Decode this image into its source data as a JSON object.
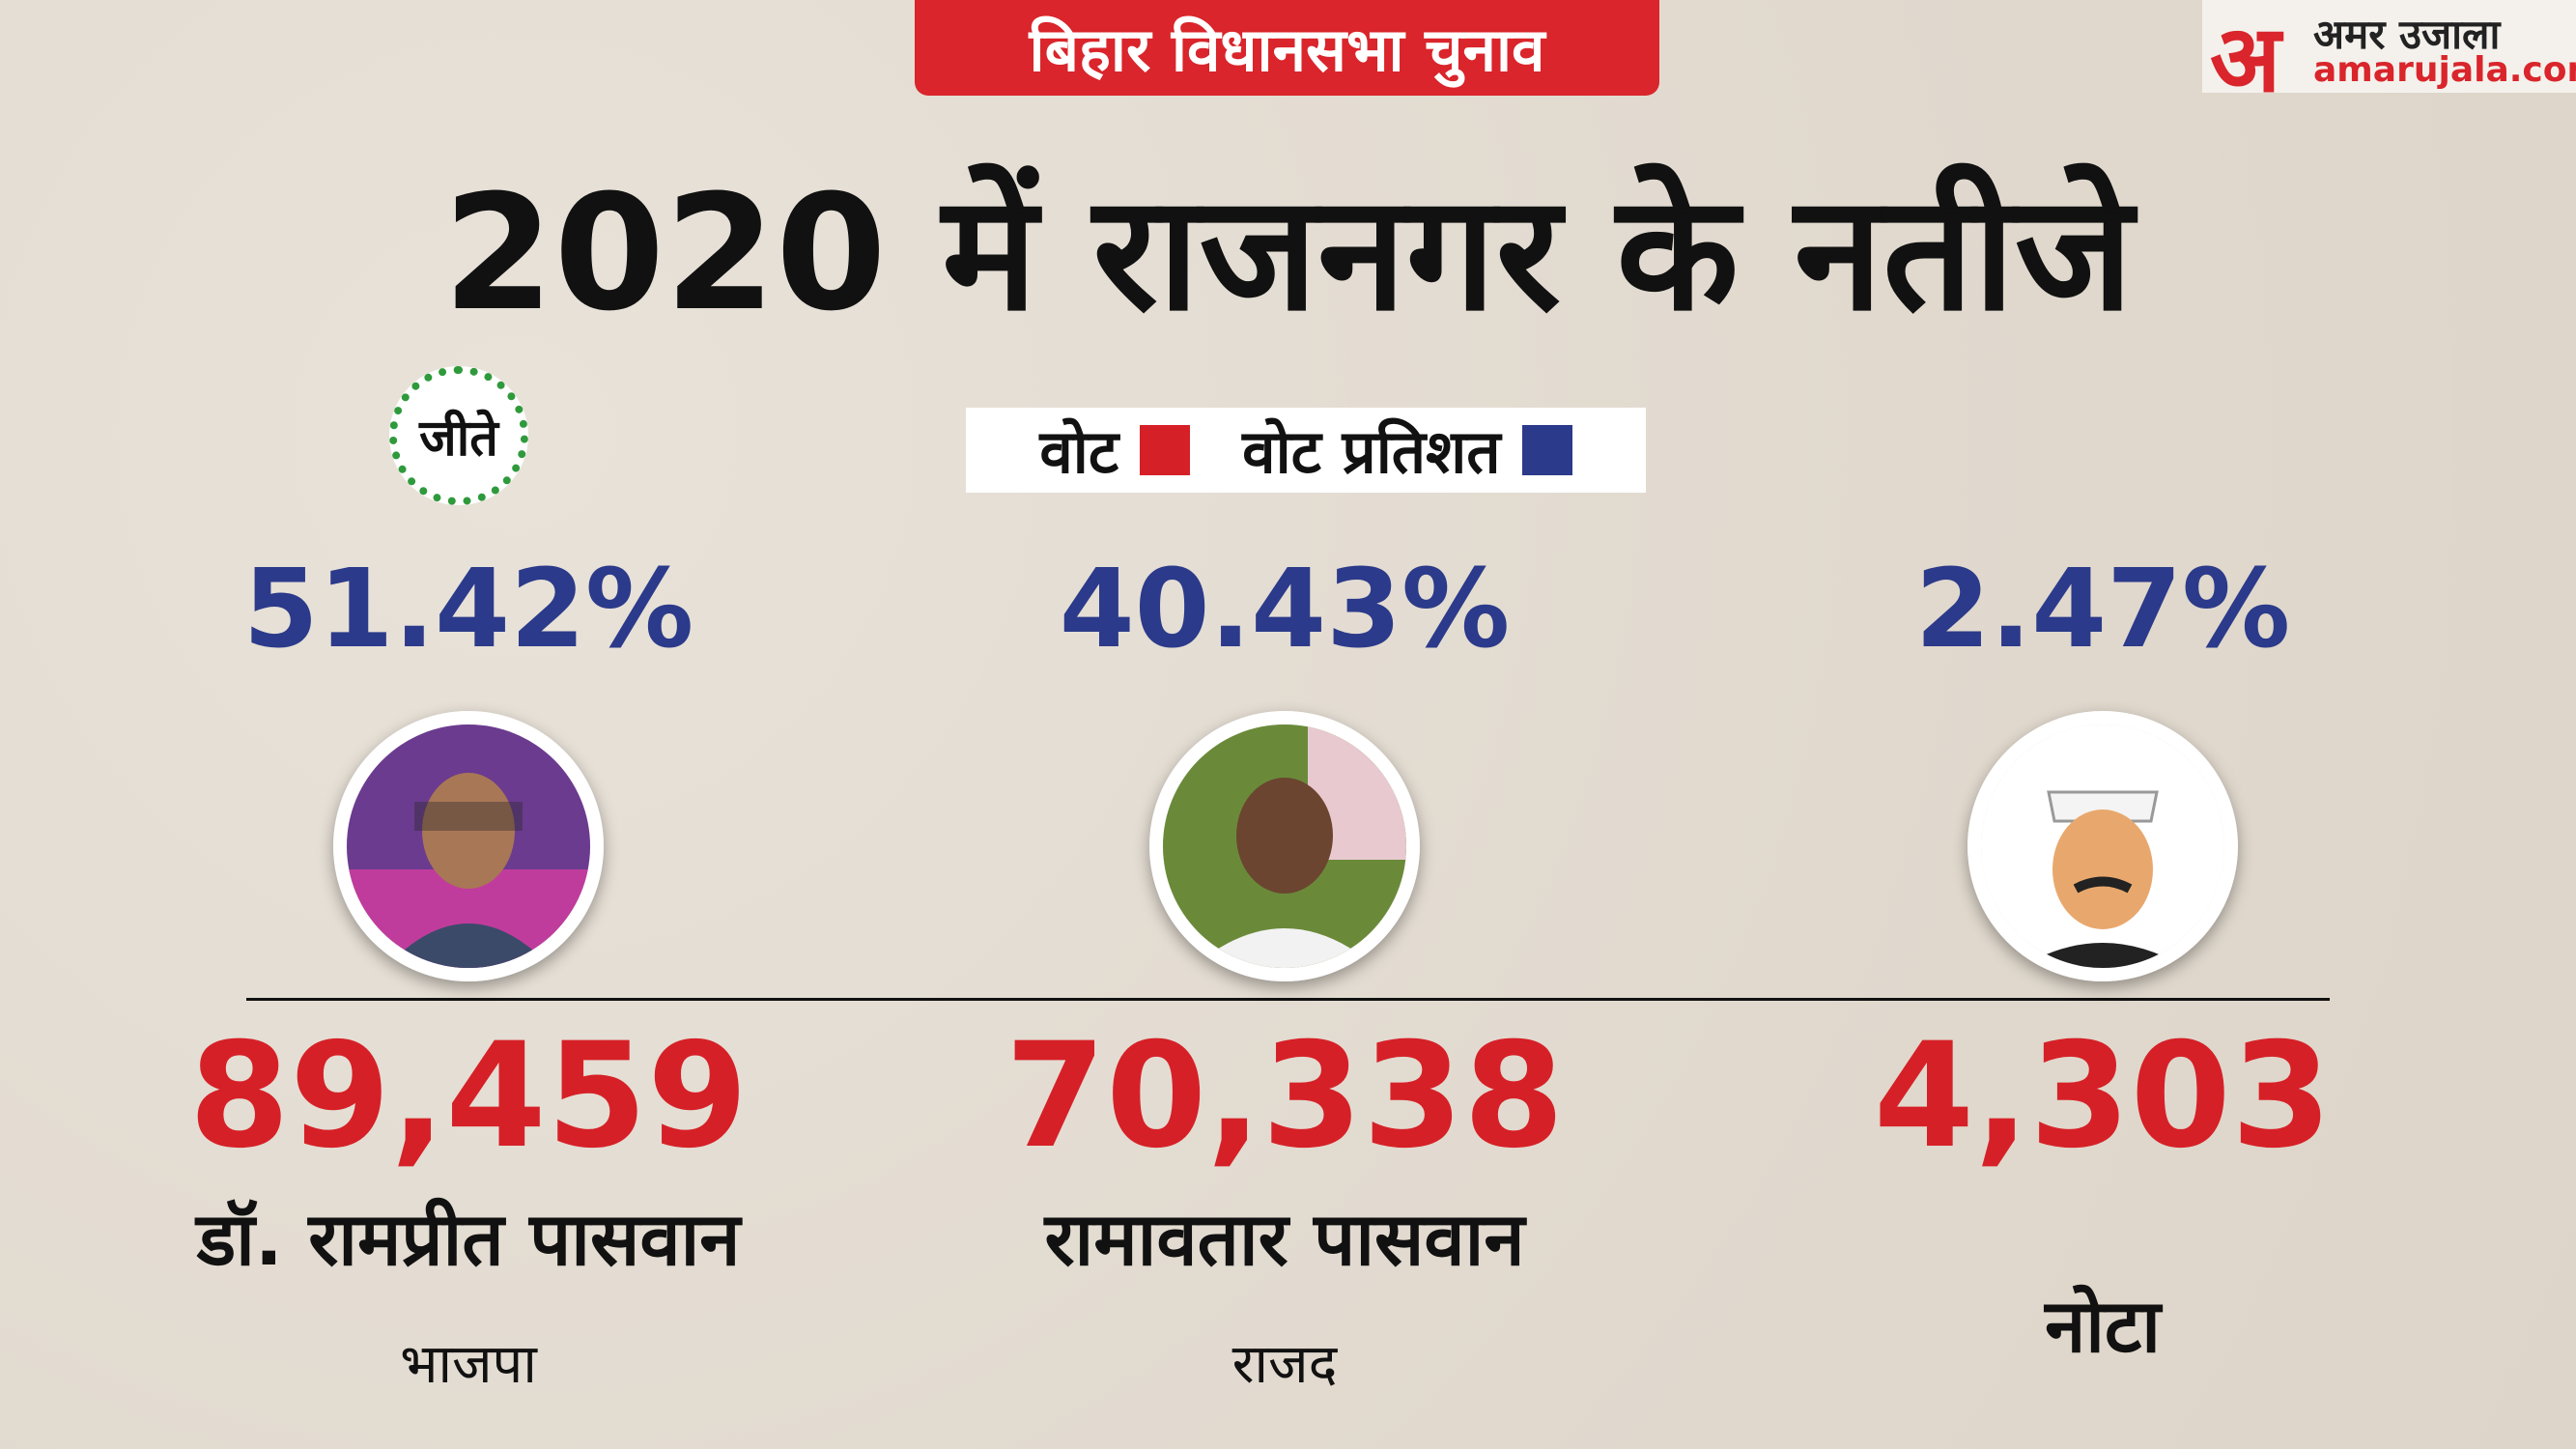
{
  "header": {
    "tag": "बिहार विधानसभा चुनाव",
    "title": "2020 में राजनगर के नतीजे"
  },
  "logo": {
    "mark": "अ",
    "name": "अमर उजाला",
    "url": "amarujala.com"
  },
  "legend": [
    {
      "label": "वोट"
    },
    {
      "label": "वोट प्रतिशत"
    }
  ],
  "winner_badge": "जीते",
  "candidates": [
    {
      "vote_percent": "51.42%",
      "votes": "89,459",
      "name": "डॉ. रामप्रीत पासवान",
      "party": "भाजपा"
    },
    {
      "vote_percent": "40.43%",
      "votes": "70,338",
      "name": "रामावतार पासवान",
      "party": "राजद"
    },
    {
      "vote_percent": "2.47%",
      "votes": "4,303",
      "name": "नोटा"
    }
  ]
}
